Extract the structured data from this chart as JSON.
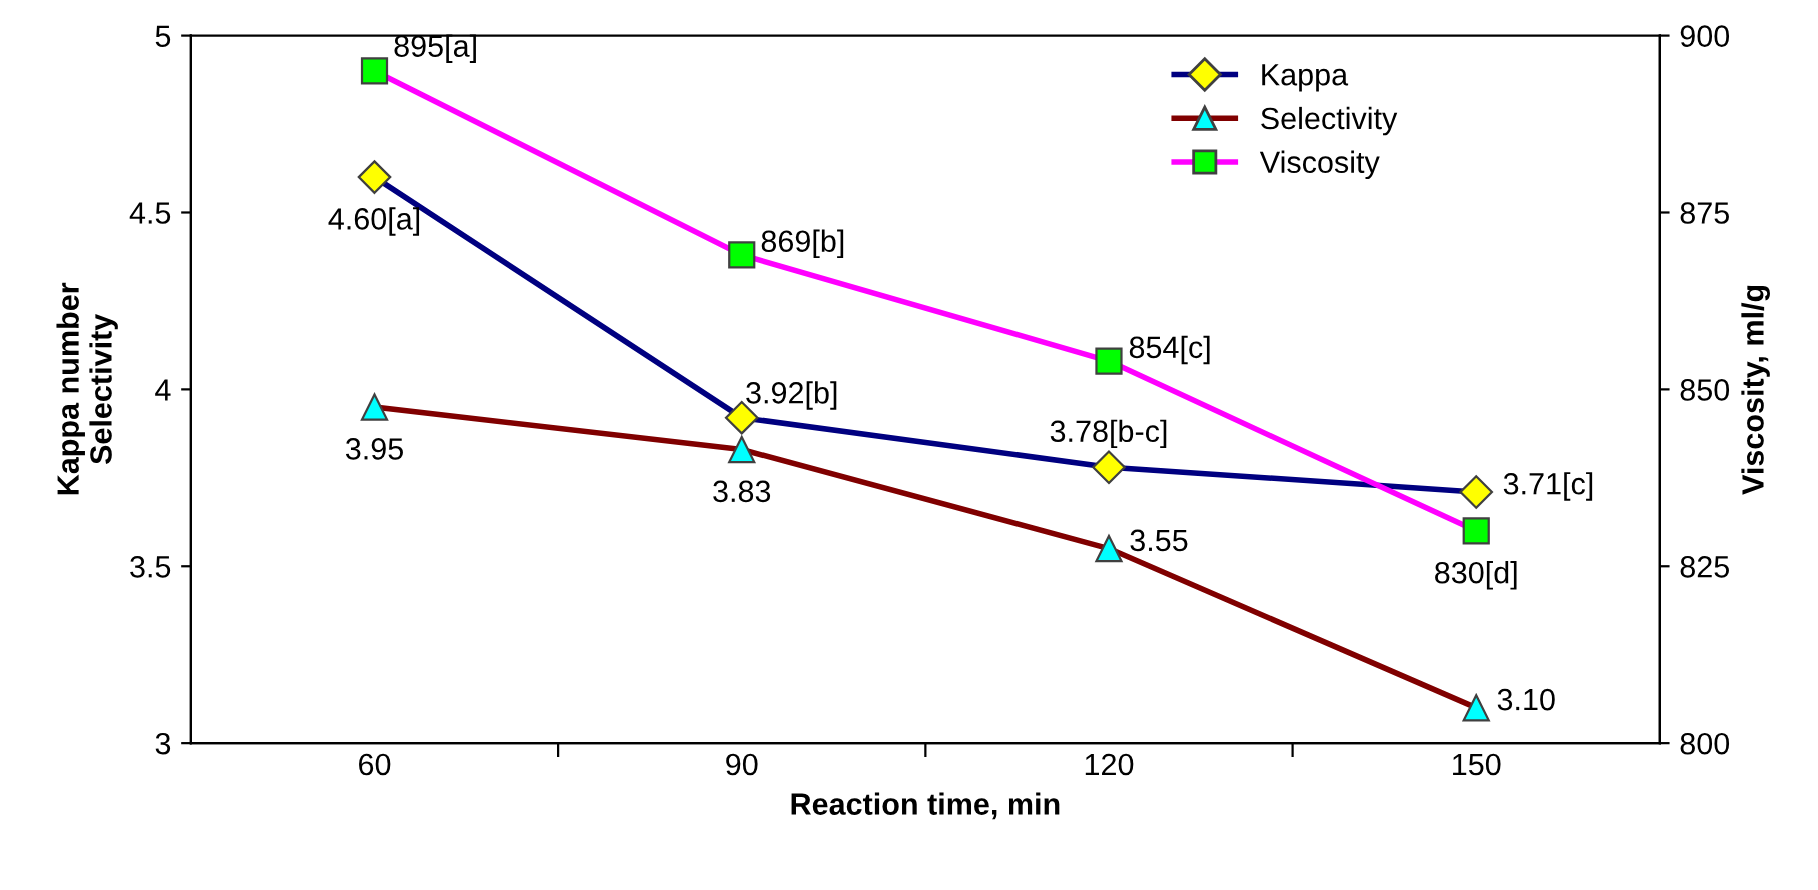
{
  "chart_data": {
    "type": "line",
    "xlabel": "Reaction time, min",
    "ylabel": "Kappa number\nSelectivity",
    "y2label": "Viscosity, ml/g",
    "categories": [
      "60",
      "90",
      "120",
      "150"
    ],
    "series": [
      {
        "name": "Kappa",
        "color": "#000080",
        "colors": [
          "#ffff00",
          "#ffff00",
          "#ffff00",
          "#ffff00"
        ],
        "marker": "diamond",
        "values": [
          4.6,
          3.92,
          3.78,
          3.71
        ],
        "value_labels": [
          "4.60[a]",
          "3.92[b]",
          "3.78[b-c]",
          "3.71[c]"
        ]
      },
      {
        "name": "Selectivity",
        "color": "#800000",
        "colors": [
          "#00ffff",
          "#00ffff",
          "#00ffff",
          "#00ffff"
        ],
        "marker": "triangle",
        "values": [
          3.95,
          3.83,
          3.55,
          3.1
        ],
        "value_labels": [
          "3.95",
          "3.83",
          "3.55",
          "3.10"
        ]
      },
      {
        "name": "Viscosity",
        "color": "#ff00ff",
        "colors": [
          "#00ff00",
          "#00ff00",
          "#00ff00",
          "#00ff00"
        ],
        "marker": "square",
        "axis": "y2",
        "values": [
          895,
          869,
          854,
          830
        ],
        "value_labels": [
          "895[a]",
          "869[b]",
          "854[c]",
          "830[d]"
        ]
      }
    ],
    "ylim": [
      3,
      5
    ],
    "yticks": [
      3,
      3.5,
      4,
      4.5,
      5
    ],
    "y2lim": [
      800,
      900
    ],
    "y2ticks": [
      800,
      825,
      850,
      875,
      900
    ],
    "grid": false,
    "legend": "top right",
    "line_style": "solid"
  }
}
